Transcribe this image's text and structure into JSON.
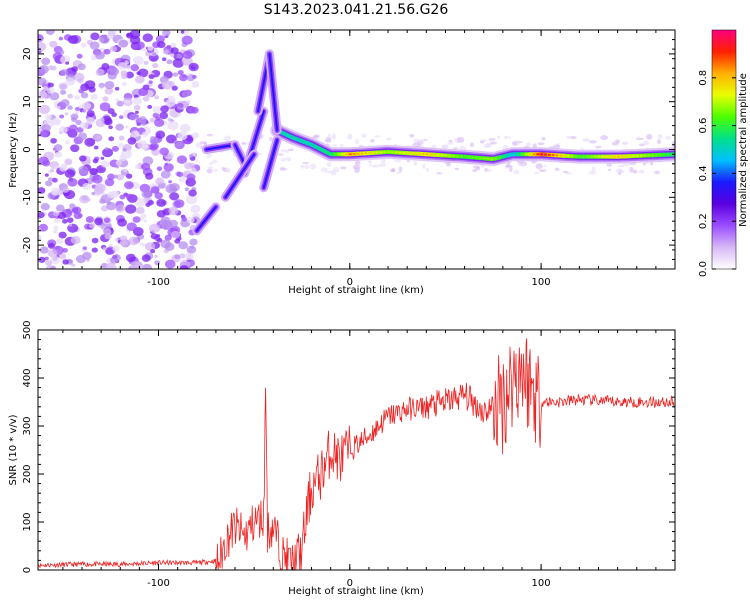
{
  "title": "S143.2023.041.21.56.G26",
  "chart_data": [
    {
      "type": "heatmap",
      "xlabel": "Height of straight line (km)",
      "ylabel": "Frequency (Hz)",
      "xlim": [
        -163,
        170
      ],
      "ylim": [
        -25,
        25
      ],
      "x_ticks": [
        -100,
        0,
        100
      ],
      "y_ticks": [
        -20,
        -10,
        0,
        10,
        20
      ],
      "colorbar": {
        "label": "Normalized spectral amplitude",
        "range": [
          0,
          1
        ],
        "ticks": [
          "0.0",
          "0.2",
          "0.4",
          "0.6",
          "0.8"
        ],
        "colormap": [
          "#ffffff",
          "#d7b8f5",
          "#9b4dff",
          "#5a00e0",
          "#1a1aff",
          "#00c0ff",
          "#00e08a",
          "#4cff00",
          "#e8ff00",
          "#ffb000",
          "#ff2000",
          "#ff0080"
        ]
      },
      "ridge": [
        {
          "x": -80,
          "y": -17,
          "amp": 0.3
        },
        {
          "x": -75,
          "y": 0,
          "amp": 0.3
        },
        {
          "x": -70,
          "y": 0.5,
          "amp": 0.3
        },
        {
          "x": -60,
          "y": 1,
          "amp": 0.3
        },
        {
          "x": -55,
          "y": -2,
          "amp": 0.25
        },
        {
          "x": -50,
          "y": 6,
          "amp": 0.3
        },
        {
          "x": -45,
          "y": 15,
          "amp": 0.35
        },
        {
          "x": -40,
          "y": 20,
          "amp": 0.3
        },
        {
          "x": -38,
          "y": 4,
          "amp": 0.45
        },
        {
          "x": -30,
          "y": 2.5,
          "amp": 0.45
        },
        {
          "x": -20,
          "y": 1,
          "amp": 0.45
        },
        {
          "x": -10,
          "y": -1,
          "amp": 0.5
        },
        {
          "x": 0,
          "y": -1,
          "amp": 0.75
        },
        {
          "x": 20,
          "y": -0.5,
          "amp": 0.6
        },
        {
          "x": 40,
          "y": -1,
          "amp": 0.7
        },
        {
          "x": 60,
          "y": -1.5,
          "amp": 0.55
        },
        {
          "x": 75,
          "y": -2,
          "amp": 0.6
        },
        {
          "x": 85,
          "y": -1,
          "amp": 0.4
        },
        {
          "x": 100,
          "y": -1,
          "amp": 0.85
        },
        {
          "x": 120,
          "y": -1.5,
          "amp": 0.55
        },
        {
          "x": 140,
          "y": -1.5,
          "amp": 0.7
        },
        {
          "x": 170,
          "y": -1,
          "amp": 0.5
        }
      ]
    },
    {
      "type": "line",
      "xlabel": "Height of straight line (km)",
      "ylabel": "SNR (10 * v/v)",
      "xlim": [
        -163,
        170
      ],
      "ylim": [
        0,
        500
      ],
      "x_ticks": [
        -100,
        0,
        100
      ],
      "y_ticks": [
        0,
        100,
        200,
        300,
        400,
        500
      ],
      "color": "#ee2222",
      "series": [
        {
          "x": [
            -163,
            -140,
            -120,
            -100,
            -80,
            -68,
            -65,
            -60,
            -55,
            -50,
            -45,
            -44,
            -43,
            -40,
            -35,
            -30,
            -28,
            -25,
            -22,
            -20,
            -15,
            -10,
            -5,
            0,
            10,
            20,
            30,
            40,
            50,
            60,
            70,
            80,
            85,
            90,
            95,
            100,
            110,
            120,
            140,
            160,
            170
          ],
          "y": [
            10,
            12,
            12,
            15,
            15,
            20,
            60,
            90,
            70,
            100,
            110,
            390,
            80,
            90,
            30,
            15,
            20,
            40,
            130,
            170,
            200,
            250,
            230,
            250,
            280,
            320,
            335,
            340,
            350,
            365,
            330,
            350,
            400,
            420,
            380,
            350,
            350,
            355,
            350,
            350,
            350
          ]
        }
      ]
    }
  ]
}
